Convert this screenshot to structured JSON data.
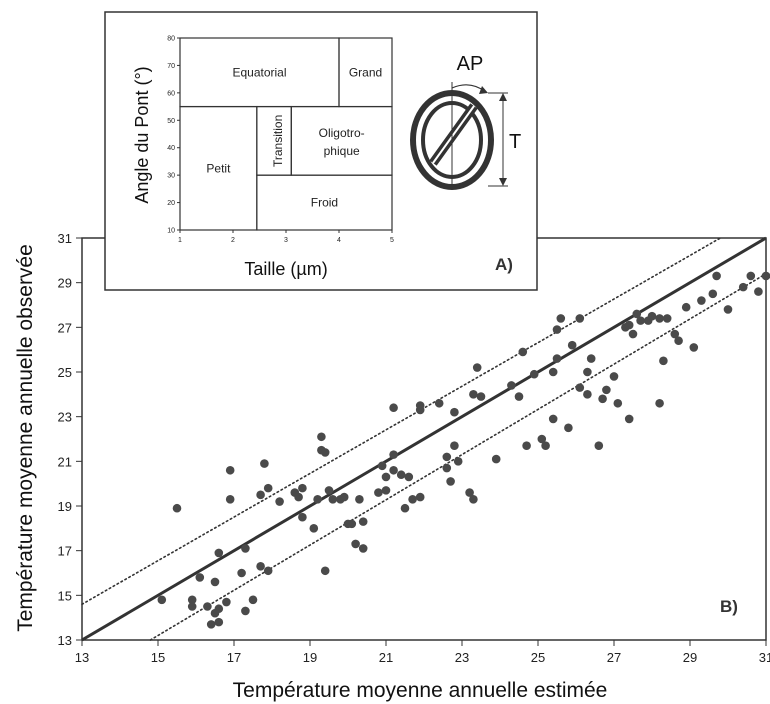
{
  "chart_data": [
    {
      "panel": "B)",
      "type": "scatter",
      "xlabel": "Température moyenne annuelle estimée",
      "ylabel": "Température moyenne annuelle observée",
      "xlim": [
        13,
        31
      ],
      "ylim": [
        13,
        31
      ],
      "xticks": [
        13,
        15,
        17,
        19,
        21,
        23,
        25,
        27,
        29,
        31
      ],
      "yticks": [
        13,
        15,
        17,
        19,
        21,
        23,
        25,
        27,
        29,
        31
      ],
      "lines": [
        {
          "style": "solid",
          "points": [
            [
              13,
              13
            ],
            [
              31,
              31
            ]
          ]
        },
        {
          "style": "dotted",
          "points": [
            [
              13,
              14.6
            ],
            [
              29.8,
              31
            ]
          ]
        },
        {
          "style": "dotted",
          "points": [
            [
              14.8,
              13
            ],
            [
              31,
              29.4
            ]
          ]
        }
      ],
      "series": [
        {
          "points": [
            [
              15.1,
              14.8
            ],
            [
              15.5,
              18.9
            ],
            [
              15.9,
              14.5
            ],
            [
              15.9,
              14.8
            ],
            [
              16.1,
              15.8
            ],
            [
              16.3,
              14.5
            ],
            [
              16.4,
              13.7
            ],
            [
              16.5,
              14.2
            ],
            [
              16.6,
              14.4
            ],
            [
              16.6,
              13.8
            ],
            [
              16.5,
              15.6
            ],
            [
              16.6,
              16.9
            ],
            [
              16.8,
              14.7
            ],
            [
              16.9,
              19.3
            ],
            [
              16.9,
              20.6
            ],
            [
              17.2,
              16
            ],
            [
              17.3,
              14.3
            ],
            [
              17.5,
              14.8
            ],
            [
              17.3,
              17.1
            ],
            [
              17.7,
              16.3
            ],
            [
              17.7,
              19.5
            ],
            [
              17.8,
              20.9
            ],
            [
              17.9,
              16.1
            ],
            [
              17.9,
              19.8
            ],
            [
              18.2,
              19.2
            ],
            [
              18.6,
              19.6
            ],
            [
              18.7,
              19.4
            ],
            [
              18.8,
              18.5
            ],
            [
              18.8,
              19.8
            ],
            [
              19.1,
              18.0
            ],
            [
              19.2,
              19.3
            ],
            [
              19.3,
              21.5
            ],
            [
              19.3,
              22.1
            ],
            [
              19.4,
              16.1
            ],
            [
              19.4,
              21.4
            ],
            [
              19.5,
              19.7
            ],
            [
              19.6,
              19.3
            ],
            [
              19.8,
              19.3
            ],
            [
              19.9,
              19.4
            ],
            [
              20.0,
              18.2
            ],
            [
              20.1,
              18.2
            ],
            [
              20.2,
              17.3
            ],
            [
              20.3,
              19.3
            ],
            [
              20.4,
              17.1
            ],
            [
              20.4,
              18.3
            ],
            [
              20.8,
              19.6
            ],
            [
              20.9,
              20.8
            ],
            [
              21.0,
              19.7
            ],
            [
              21.0,
              20.3
            ],
            [
              21.2,
              21.3
            ],
            [
              21.2,
              20.6
            ],
            [
              21.2,
              23.4
            ],
            [
              21.4,
              20.4
            ],
            [
              21.5,
              18.9
            ],
            [
              21.6,
              20.3
            ],
            [
              21.7,
              19.3
            ],
            [
              21.9,
              19.4
            ],
            [
              21.9,
              23.3
            ],
            [
              21.9,
              23.5
            ],
            [
              22.4,
              23.6
            ],
            [
              22.6,
              21.2
            ],
            [
              22.6,
              20.7
            ],
            [
              22.7,
              20.1
            ],
            [
              22.8,
              23.2
            ],
            [
              22.9,
              21
            ],
            [
              22.8,
              21.7
            ],
            [
              23.2,
              19.6
            ],
            [
              23.3,
              19.3
            ],
            [
              23.3,
              24.0
            ],
            [
              23.4,
              25.2
            ],
            [
              23.5,
              23.9
            ],
            [
              23.9,
              21.1
            ],
            [
              24.3,
              24.4
            ],
            [
              24.5,
              23.9
            ],
            [
              24.6,
              25.9
            ],
            [
              24.7,
              21.7
            ],
            [
              24.9,
              24.9
            ],
            [
              25.1,
              22.0
            ],
            [
              25.2,
              21.7
            ],
            [
              25.4,
              22.9
            ],
            [
              25.4,
              25.0
            ],
            [
              25.5,
              25.6
            ],
            [
              25.5,
              26.9
            ],
            [
              25.6,
              27.4
            ],
            [
              25.8,
              22.5
            ],
            [
              25.9,
              26.2
            ],
            [
              26.1,
              24.3
            ],
            [
              26.1,
              27.4
            ],
            [
              26.3,
              24.0
            ],
            [
              26.3,
              25.0
            ],
            [
              26.4,
              25.6
            ],
            [
              26.6,
              21.7
            ],
            [
              26.7,
              23.8
            ],
            [
              26.8,
              24.2
            ],
            [
              27.0,
              24.8
            ],
            [
              27.1,
              23.6
            ],
            [
              27.3,
              27.0
            ],
            [
              27.4,
              27.1
            ],
            [
              27.4,
              22.9
            ],
            [
              27.5,
              26.7
            ],
            [
              27.6,
              27.6
            ],
            [
              27.7,
              27.3
            ],
            [
              27.9,
              27.3
            ],
            [
              28.0,
              27.5
            ],
            [
              28.2,
              27.4
            ],
            [
              28.2,
              23.6
            ],
            [
              28.3,
              25.5
            ],
            [
              28.4,
              27.4
            ],
            [
              28.6,
              26.7
            ],
            [
              28.7,
              26.4
            ],
            [
              28.9,
              27.9
            ],
            [
              29.1,
              26.1
            ],
            [
              29.3,
              28.2
            ],
            [
              29.6,
              28.5
            ],
            [
              29.7,
              29.3
            ],
            [
              30.0,
              27.8
            ],
            [
              30.4,
              28.8
            ],
            [
              30.6,
              29.3
            ],
            [
              30.8,
              28.6
            ],
            [
              31.0,
              29.3
            ]
          ]
        }
      ]
    },
    {
      "panel": "A)",
      "type": "diagram",
      "xlabel": "Taille (µm)",
      "ylabel": "Angle du Pont (°)",
      "xlim": [
        1,
        5
      ],
      "ylim": [
        10,
        80
      ],
      "xticks": [
        1,
        2,
        3,
        4,
        5
      ],
      "yticks": [
        10,
        20,
        30,
        40,
        50,
        60,
        70,
        80
      ],
      "regions": [
        {
          "label": "Equatorial",
          "x": [
            1,
            4
          ],
          "y": [
            55,
            80
          ]
        },
        {
          "label": "Grand",
          "x": [
            4,
            5
          ],
          "y": [
            55,
            80
          ]
        },
        {
          "label": "Petit",
          "x": [
            1,
            2.45
          ],
          "y": [
            10,
            55
          ]
        },
        {
          "label": "Transition",
          "x": [
            2.45,
            3.1
          ],
          "y": [
            30,
            55
          ]
        },
        {
          "label": "Oligotro-\nphique",
          "x": [
            3.1,
            5
          ],
          "y": [
            30,
            55
          ]
        },
        {
          "label": "Froid",
          "x": [
            2.45,
            5
          ],
          "y": [
            10,
            30
          ]
        }
      ],
      "schematic": {
        "label_ap": "AP",
        "label_t": "T"
      }
    }
  ]
}
